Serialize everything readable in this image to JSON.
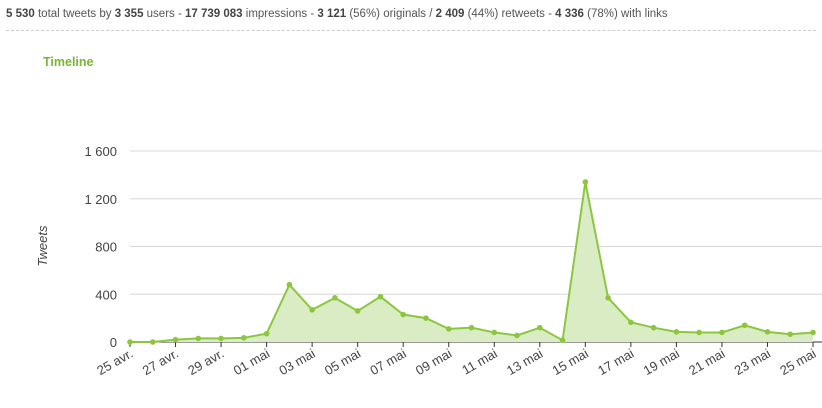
{
  "summary": [
    {
      "strong": "5 530",
      "text": " total tweets by "
    },
    {
      "strong": "3 355",
      "text": " users - "
    },
    {
      "strong": "17 739 083",
      "text": " impressions - "
    },
    {
      "strong": "3 121",
      "text": " (56%) originals / "
    },
    {
      "strong": "2 409",
      "text": " (44%) retweets - "
    },
    {
      "strong": "4 336",
      "text": " (78%) with links"
    }
  ],
  "chart_data": {
    "type": "area",
    "title": "Timeline",
    "y_label": "Tweets",
    "categories": [
      "25 avr.",
      null,
      "27 avr.",
      null,
      "29 avr.",
      null,
      "01 mai",
      null,
      "03 mai",
      null,
      "05 mai",
      null,
      "07 mai",
      null,
      "09 mai",
      null,
      "11 mai",
      null,
      "13 mai",
      null,
      "15 mai",
      null,
      "17 mai",
      null,
      "19 mai",
      null,
      "21 mai",
      null,
      "23 mai",
      null,
      "25 mai"
    ],
    "values": [
      0,
      0,
      20,
      30,
      30,
      35,
      70,
      480,
      270,
      370,
      260,
      380,
      230,
      200,
      110,
      120,
      80,
      55,
      120,
      15,
      1340,
      370,
      165,
      120,
      85,
      80,
      80,
      140,
      85,
      65,
      80
    ],
    "color": "#8cc63f",
    "fill_color": "#d9ecc3",
    "ylim": [
      0,
      1600
    ],
    "yticks": [
      0,
      400,
      800,
      {
        "value": 1200,
        "label": "1 200"
      },
      {
        "value": 1600,
        "label": "1 600"
      }
    ],
    "grid": true
  }
}
